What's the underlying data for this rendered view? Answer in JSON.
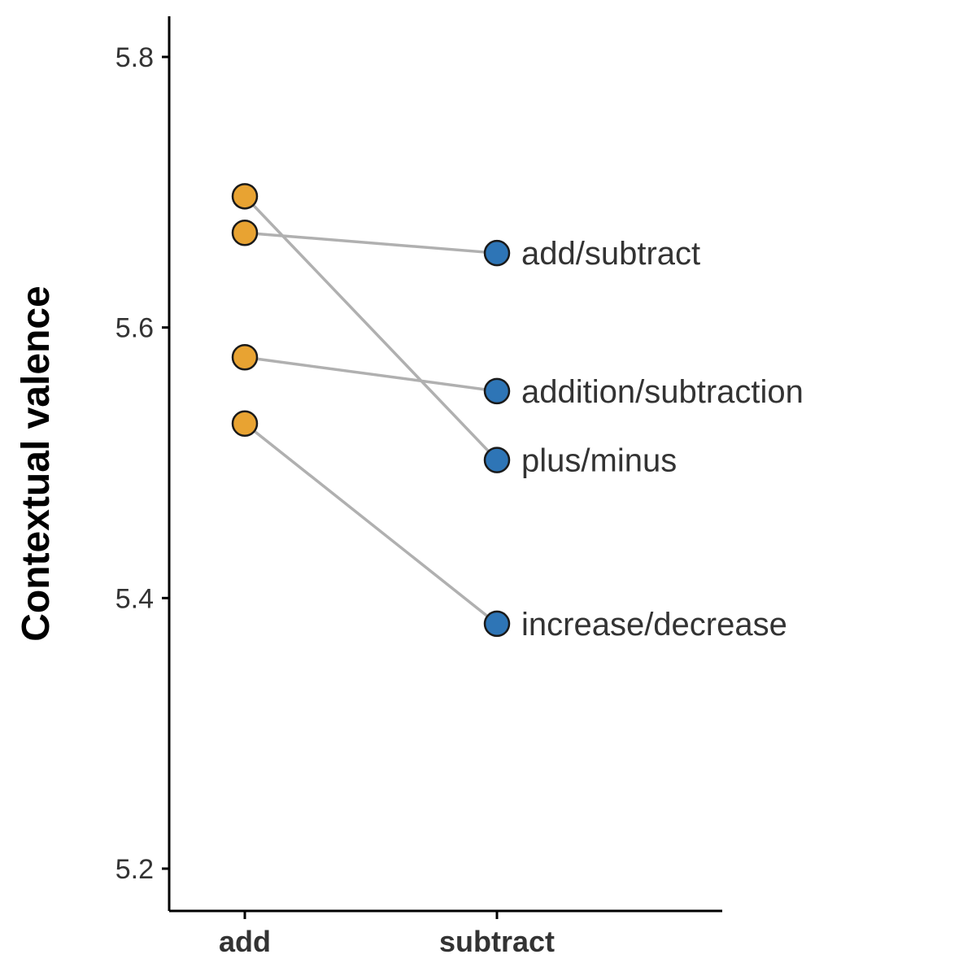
{
  "chart_data": {
    "type": "scatter",
    "ylabel": "Contextual valence",
    "ylim": [
      5.17,
      5.83
    ],
    "yticks": [
      "5.2",
      "5.4",
      "5.6",
      "5.8"
    ],
    "categories": [
      "add",
      "subtract"
    ],
    "pairs": [
      {
        "label": "add/subtract",
        "add": 5.67,
        "subtract": 5.655
      },
      {
        "label": "addition/subtraction",
        "add": 5.578,
        "subtract": 5.553
      },
      {
        "label": "plus/minus",
        "add": 5.697,
        "subtract": 5.502
      },
      {
        "label": "increase/decrease",
        "add": 5.529,
        "subtract": 5.381
      }
    ],
    "colors": {
      "add": "#E8A332",
      "subtract": "#2E75B6",
      "connector": "#B0B0B0"
    }
  }
}
